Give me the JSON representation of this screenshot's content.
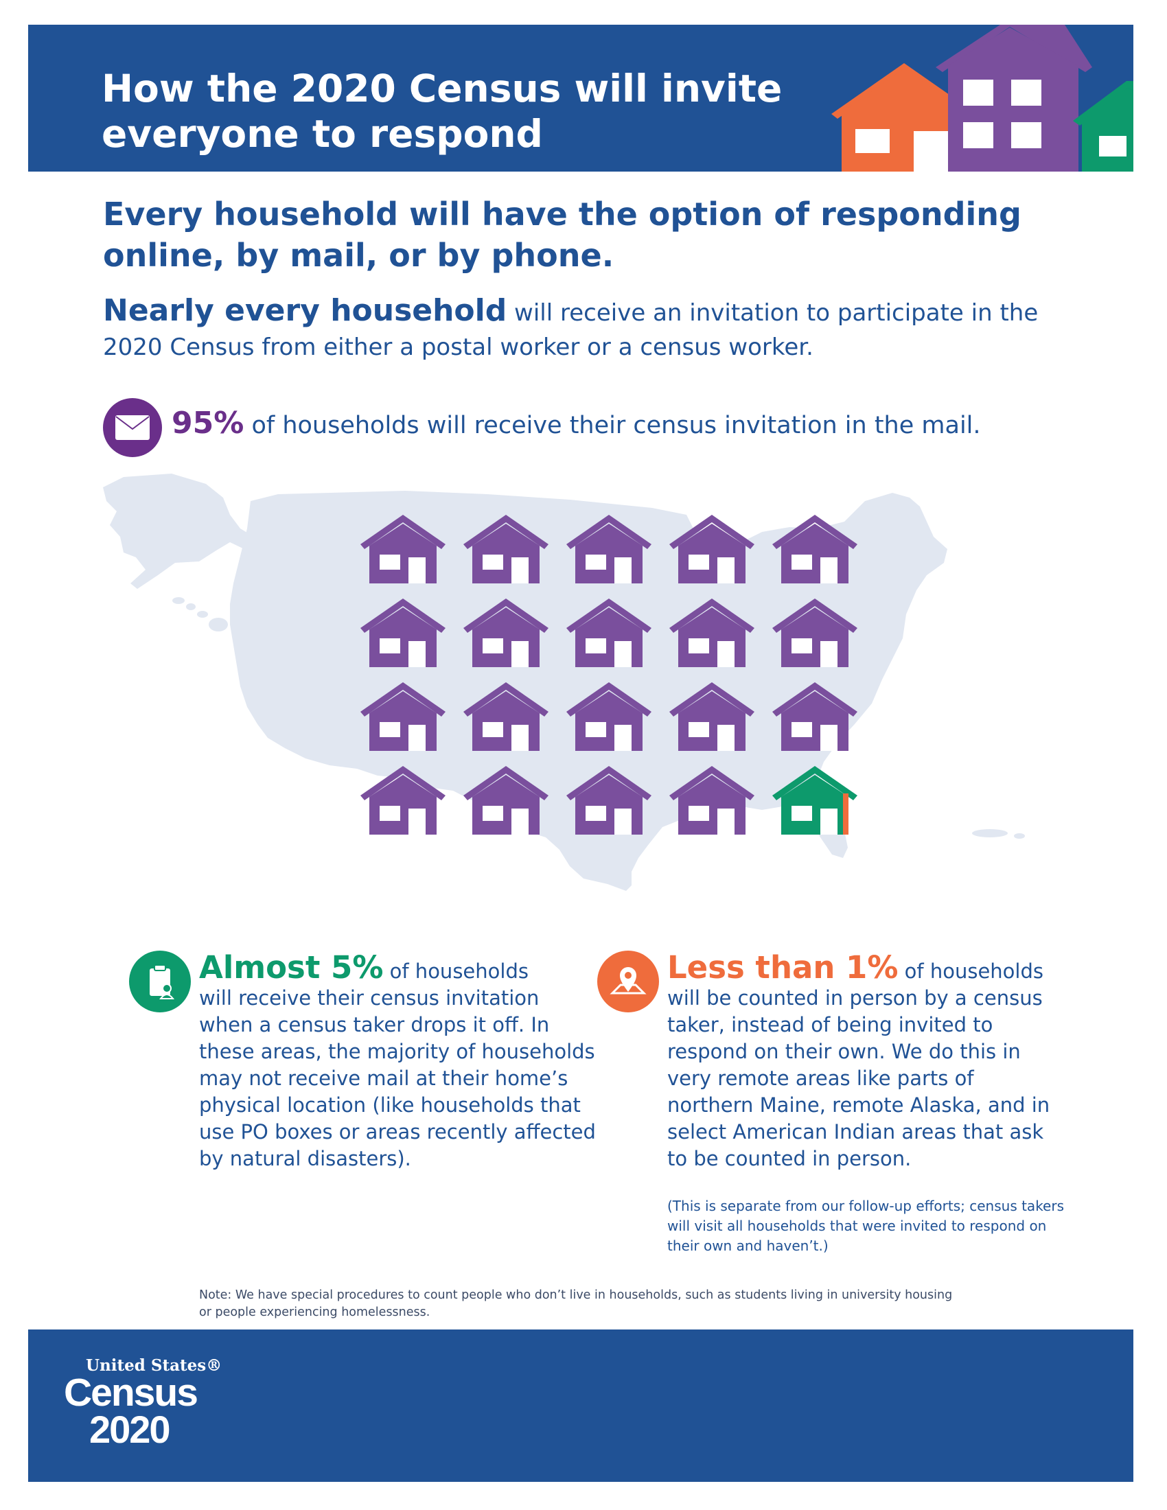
{
  "header": {
    "title": "How the 2020 Census will invite\neveryone to respond"
  },
  "intro": {
    "headline": "Every household will have the option of responding online, by mail, or by phone.",
    "lead": "Nearly every household",
    "rest": " will receive an invitation to participate in the 2020 Census from either a postal worker or a census worker."
  },
  "mail": {
    "icon": "envelope-icon",
    "percent": "95%",
    "text": " of households will receive their census invitation in the mail."
  },
  "house_grid": {
    "rows": 4,
    "columns": 5,
    "purple_count": 19,
    "highlight_count": 1,
    "colors": {
      "mail": "#7a4f9d",
      "drop_off": "#0d9a6c",
      "in_person": "#ef6c3c",
      "map": "#e1e7f1"
    }
  },
  "drop_off": {
    "icon": "clipboard-person-icon",
    "amount": "Almost 5%",
    "suffix": " of households",
    "text": "will receive their census invitation when a census taker drops it off. In these areas, the majority of households may not receive mail at their home’s physical location (like households that use PO boxes or areas recently affected by natural disasters)."
  },
  "in_person": {
    "icon": "map-pin-icon",
    "amount": "Less than 1%",
    "suffix": " of households",
    "text": "will be counted in person by a census taker, instead of being invited to respond on their own. We do this in very remote areas like parts of northern Maine, remote Alaska, and in select American Indian areas that ask to be counted in person.",
    "note": "(This is separate from our follow-up efforts; census takers will visit all households that were invited to respond on their own and haven’t.)"
  },
  "footnote": "Note: We have special procedures to count people who don’t live in households, such as students living in university housing or people experiencing homelessness.",
  "logo": {
    "top": "United States®",
    "middle": "Census",
    "year": "2020"
  },
  "colors": {
    "navy": "#205295",
    "purple": "#6a2f8a",
    "green": "#0d9a6c",
    "orange": "#ef6c3c"
  }
}
